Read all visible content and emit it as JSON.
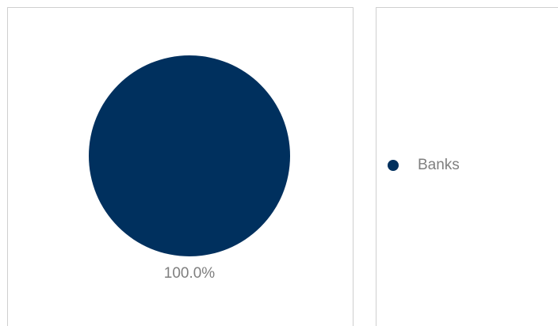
{
  "chart_data": {
    "type": "pie",
    "slices": [
      {
        "label": "Banks",
        "value": 100.0,
        "display": "100.0%",
        "color": "#00305e"
      }
    ],
    "legend_position": "right"
  }
}
